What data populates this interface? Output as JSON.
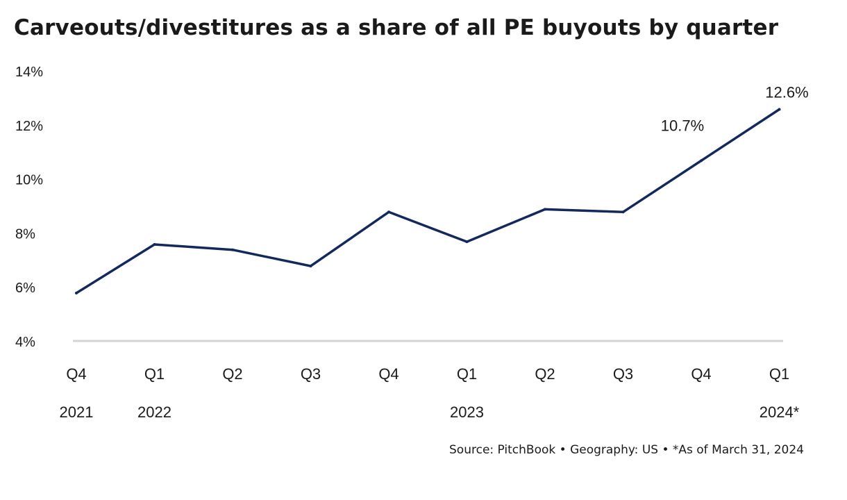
{
  "chart_data": {
    "type": "line",
    "title": "Carveouts/divestitures as a share of all PE buyouts by quarter",
    "categories": [
      "Q4",
      "Q1",
      "Q2",
      "Q3",
      "Q4",
      "Q1",
      "Q2",
      "Q3",
      "Q4",
      "Q1"
    ],
    "year_labels": [
      "2021",
      "2022",
      "",
      "",
      "",
      "2023",
      "",
      "",
      "",
      "2024*"
    ],
    "series": [
      {
        "values": [
          5.8,
          7.6,
          7.4,
          6.8,
          8.8,
          7.7,
          8.9,
          8.8,
          10.7,
          12.6
        ]
      }
    ],
    "data_labels": [
      "",
      "",
      "",
      "",
      "",
      "",
      "",
      "",
      "10.7%",
      "12.6%"
    ],
    "yticks": [
      "4%",
      "6%",
      "8%",
      "10%",
      "12%",
      "14%"
    ],
    "ylim": [
      4,
      14
    ],
    "xlabel": "",
    "ylabel": "",
    "grid": false,
    "line_color": "#13295c",
    "baseline_color": "#d3d3d3"
  },
  "source": "Source: PitchBook  •  Geography: US  •  *As of March 31, 2024"
}
